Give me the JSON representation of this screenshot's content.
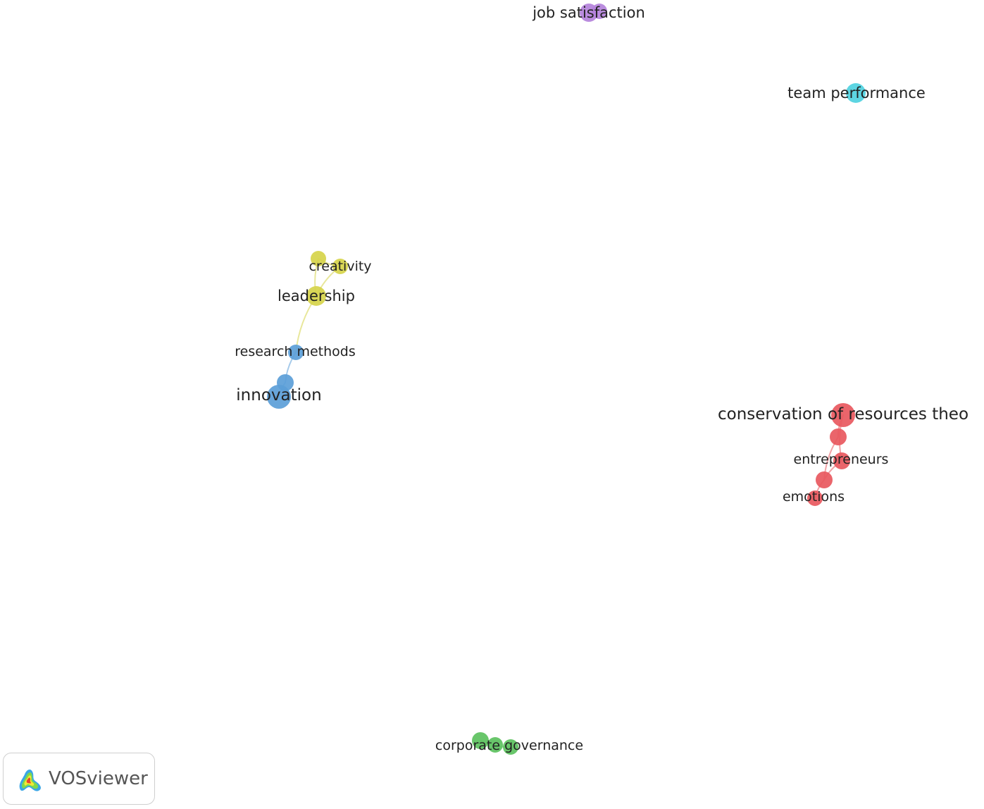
{
  "diagram": {
    "type": "keyword co-occurrence network",
    "clusters": [
      {
        "id": "red",
        "color": "#e8585e"
      },
      {
        "id": "green",
        "color": "#5cc15e"
      },
      {
        "id": "blue",
        "color": "#5b9ed8"
      },
      {
        "id": "yellow",
        "color": "#d6d44a"
      },
      {
        "id": "purple",
        "color": "#b482db"
      },
      {
        "id": "cyan",
        "color": "#4fd1df"
      }
    ],
    "nodes": [
      {
        "id": "job-satisfaction",
        "label": "job satisfaction",
        "cluster": "purple"
      },
      {
        "id": "job-satisfaction-2",
        "label": "",
        "cluster": "purple"
      },
      {
        "id": "team-performance",
        "label": "team performance",
        "cluster": "cyan"
      },
      {
        "id": "creativity-top",
        "label": "",
        "cluster": "yellow"
      },
      {
        "id": "creativity",
        "label": "creativity",
        "cluster": "yellow"
      },
      {
        "id": "leadership",
        "label": "leadership",
        "cluster": "yellow"
      },
      {
        "id": "research-methods",
        "label": "research methods",
        "cluster": "blue"
      },
      {
        "id": "blue-mid",
        "label": "",
        "cluster": "blue"
      },
      {
        "id": "innovation",
        "label": "innovation",
        "cluster": "blue"
      },
      {
        "id": "conservation",
        "label": "conservation of resources theo",
        "cluster": "red"
      },
      {
        "id": "red-2",
        "label": "",
        "cluster": "red"
      },
      {
        "id": "entrepreneurs",
        "label": "entrepreneurs",
        "cluster": "red"
      },
      {
        "id": "red-4",
        "label": "",
        "cluster": "red"
      },
      {
        "id": "emotions",
        "label": "emotions",
        "cluster": "red"
      },
      {
        "id": "green-1",
        "label": "",
        "cluster": "green"
      },
      {
        "id": "green-2",
        "label": "",
        "cluster": "green"
      },
      {
        "id": "corporate-governance",
        "label": "corporate governance",
        "cluster": "green"
      }
    ],
    "edges": [
      {
        "source": "creativity-top",
        "target": "creativity",
        "cluster": "yellow"
      },
      {
        "source": "creativity-top",
        "target": "leadership",
        "cluster": "yellow"
      },
      {
        "source": "creativity",
        "target": "leadership",
        "cluster": "yellow"
      },
      {
        "source": "leadership",
        "target": "research-methods",
        "cluster": "yellow"
      },
      {
        "source": "research-methods",
        "target": "blue-mid",
        "cluster": "blue"
      },
      {
        "source": "blue-mid",
        "target": "innovation",
        "cluster": "blue"
      },
      {
        "source": "conservation",
        "target": "red-2",
        "cluster": "red"
      },
      {
        "source": "conservation",
        "target": "entrepreneurs",
        "cluster": "red"
      },
      {
        "source": "red-2",
        "target": "red-4",
        "cluster": "red"
      },
      {
        "source": "entrepreneurs",
        "target": "red-4",
        "cluster": "red"
      },
      {
        "source": "red-4",
        "target": "emotions",
        "cluster": "red"
      },
      {
        "source": "green-1",
        "target": "green-2",
        "cluster": "green"
      },
      {
        "source": "green-2",
        "target": "corporate-governance",
        "cluster": "green"
      }
    ]
  },
  "logo": {
    "text": "VOSviewer",
    "icon": "vosviewer-logo-icon"
  }
}
